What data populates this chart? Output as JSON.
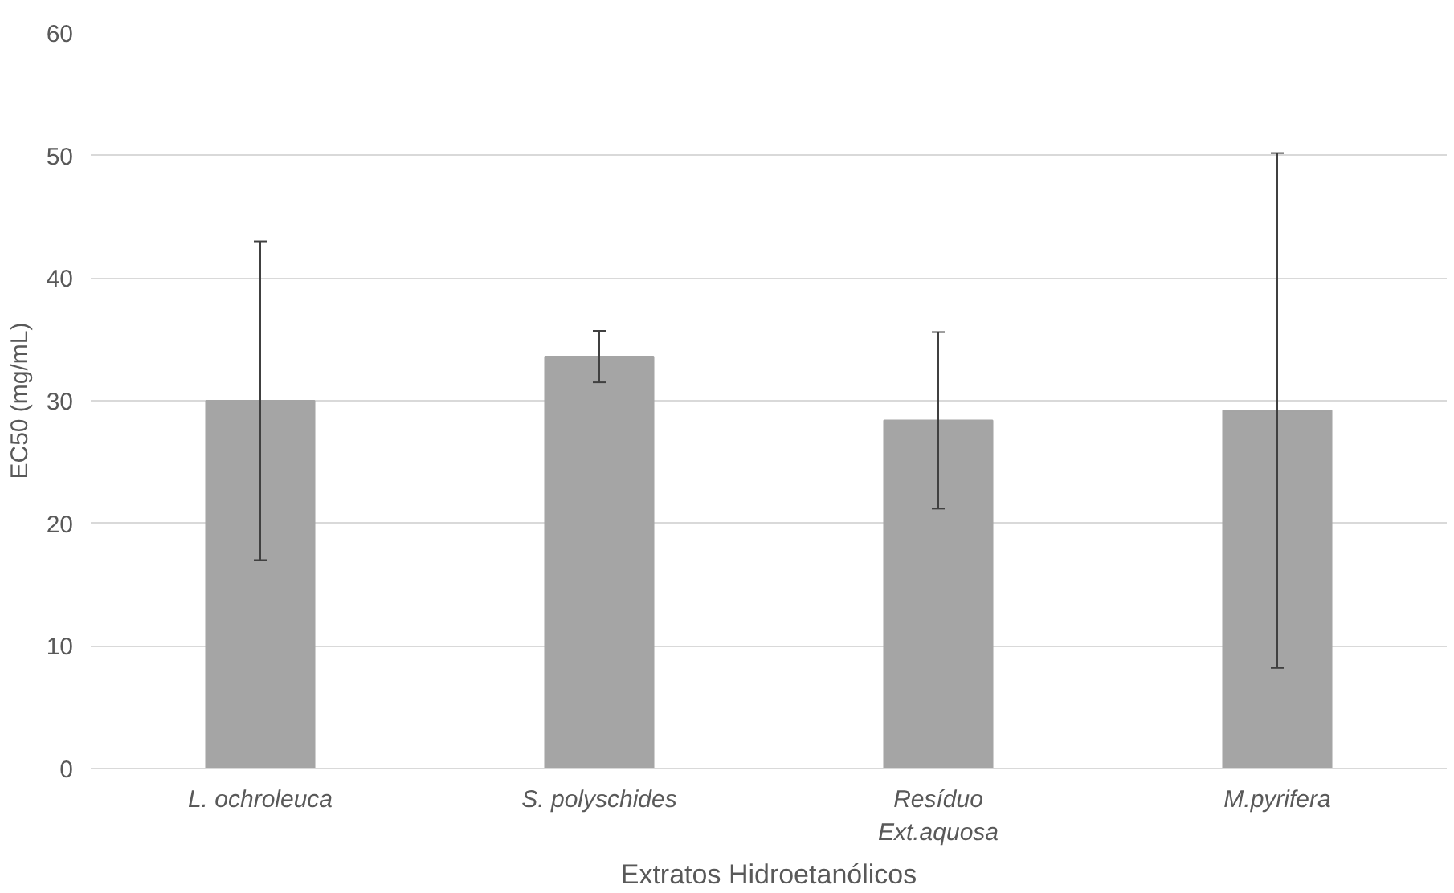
{
  "chart_data": {
    "type": "bar",
    "xlabel": "Extratos Hidroetanólicos",
    "ylabel": "EC50 (mg/mL)",
    "categories": [
      "L. ochroleuca",
      "S. polyschides",
      "Resíduo\nExt.aquosa",
      "M.pyrifera"
    ],
    "values": [
      30.0,
      33.6,
      28.4,
      29.2
    ],
    "color": "#a5a5a5",
    "errors": [
      13.0,
      2.1,
      7.2,
      21.0
    ],
    "ylim": [
      0,
      60
    ],
    "yticks": [
      0,
      10,
      20,
      30,
      40,
      50,
      60
    ],
    "grid": "y"
  }
}
